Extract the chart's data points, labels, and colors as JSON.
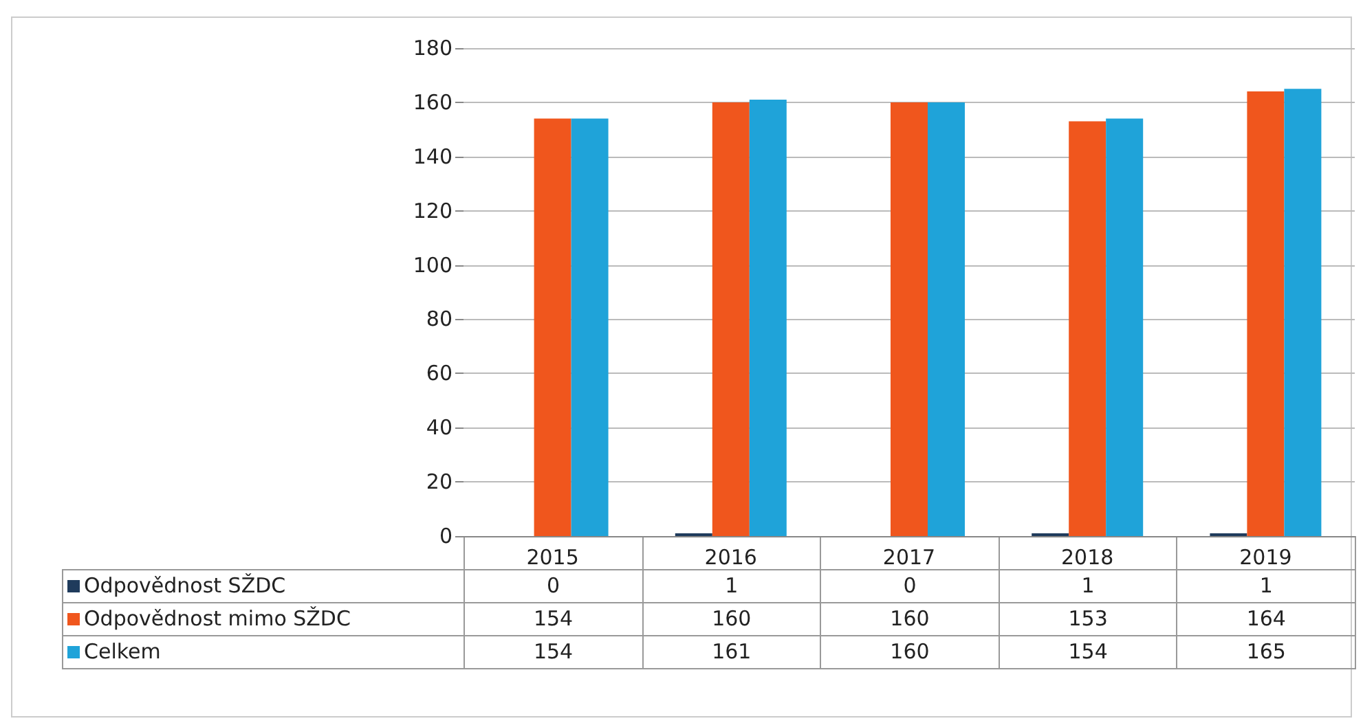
{
  "chart_data": {
    "type": "bar",
    "categories": [
      "2015",
      "2016",
      "2017",
      "2018",
      "2019"
    ],
    "series": [
      {
        "name": "Odpovědnost SŽDC",
        "color": "#1f3b5c",
        "values": [
          0,
          1,
          0,
          1,
          1
        ]
      },
      {
        "name": "Odpovědnost mimo SŽDC",
        "color": "#f0561d",
        "values": [
          154,
          160,
          160,
          153,
          164
        ]
      },
      {
        "name": "Celkem",
        "color": "#1fa3d9",
        "values": [
          154,
          161,
          160,
          154,
          165
        ]
      }
    ],
    "ylim": [
      0,
      180
    ],
    "yticks": [
      0,
      20,
      40,
      60,
      80,
      100,
      120,
      140,
      160,
      180
    ],
    "grid": "y",
    "data_labels": true,
    "legend": "bottom"
  }
}
